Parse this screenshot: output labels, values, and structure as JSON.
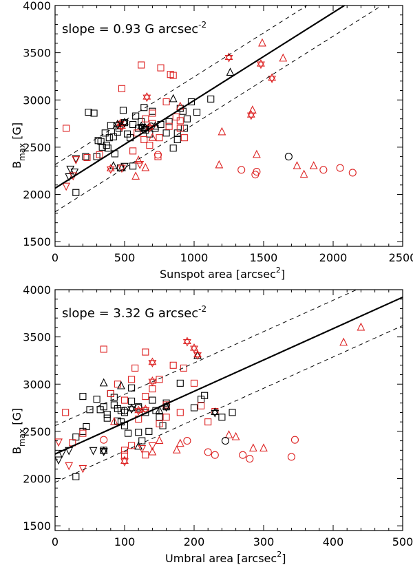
{
  "chart_data": [
    {
      "type": "scatter",
      "xlabel": "Sunspot area [arcsec",
      "xlabel_sup": "2",
      "xlabel_end": "]",
      "ylabel": "B",
      "ylabel_sub": "max",
      "ylabel_end": " [G]",
      "annotation": "slope = 0.93 G arcsec",
      "annotation_sup": "-2",
      "xlim": [
        0,
        2500
      ],
      "ylim": [
        1450,
        4000
      ],
      "xticks": [
        "0",
        "500",
        "1000",
        "1500",
        "2000",
        "2500"
      ],
      "yticks": [
        "1500",
        "2000",
        "2500",
        "3000",
        "3500",
        "4000"
      ],
      "fit": {
        "intercept": 2065,
        "slope": 0.93,
        "band": 250
      },
      "series": [
        {
          "marker": "square",
          "color": "#000000",
          "points": [
            [
              150,
              2020
            ],
            [
              220,
              2400
            ],
            [
              240,
              2870
            ],
            [
              280,
              2860
            ],
            [
              310,
              2570
            ],
            [
              330,
              2560
            ],
            [
              340,
              2500
            ],
            [
              360,
              2650
            ],
            [
              370,
              2520
            ],
            [
              380,
              2490
            ],
            [
              390,
              2600
            ],
            [
              400,
              2730
            ],
            [
              420,
              2610
            ],
            [
              450,
              2660
            ],
            [
              460,
              2700
            ],
            [
              470,
              2280
            ],
            [
              490,
              2890
            ],
            [
              500,
              2760
            ],
            [
              520,
              2640
            ],
            [
              540,
              2600
            ],
            [
              560,
              2740
            ],
            [
              580,
              2830
            ],
            [
              600,
              2700
            ],
            [
              620,
              2770
            ],
            [
              640,
              2920
            ],
            [
              650,
              2680
            ],
            [
              680,
              2640
            ],
            [
              700,
              2880
            ],
            [
              720,
              2700
            ],
            [
              760,
              2740
            ],
            [
              800,
              2650
            ],
            [
              820,
              2770
            ],
            [
              850,
              2490
            ],
            [
              880,
              2650
            ],
            [
              900,
              2910
            ],
            [
              920,
              2880
            ],
            [
              950,
              2800
            ],
            [
              980,
              2980
            ],
            [
              1020,
              2870
            ],
            [
              1120,
              3010
            ],
            [
              300,
              2400
            ],
            [
              430,
              2430
            ],
            [
              560,
              2300
            ],
            [
              880,
              2580
            ],
            [
              930,
              2700
            ]
          ]
        },
        {
          "marker": "square",
          "color": "#dd2222",
          "points": [
            [
              230,
              2390
            ],
            [
              320,
              2420
            ],
            [
              480,
              3120
            ],
            [
              620,
              3370
            ],
            [
              650,
              2800
            ],
            [
              700,
              2860
            ],
            [
              760,
              3340
            ],
            [
              800,
              2980
            ],
            [
              830,
              3270
            ],
            [
              850,
              3260
            ],
            [
              870,
              2820
            ],
            [
              900,
              2700
            ],
            [
              930,
              2600
            ],
            [
              560,
              2460
            ],
            [
              590,
              2650
            ],
            [
              640,
              2580
            ],
            [
              700,
              2750
            ],
            [
              680,
              2520
            ],
            [
              750,
              2600
            ],
            [
              900,
              2780
            ],
            [
              820,
              2720
            ],
            [
              740,
              2400
            ],
            [
              80,
              2700
            ]
          ]
        },
        {
          "marker": "triangle-up",
          "color": "#000000",
          "points": [
            [
              1260,
              3290
            ],
            [
              850,
              3010
            ],
            [
              480,
              2280
            ],
            [
              420,
              2300
            ],
            [
              720,
              2720
            ]
          ]
        },
        {
          "marker": "triangle-up",
          "color": "#dd2222",
          "points": [
            [
              1490,
              3600
            ],
            [
              1640,
              3440
            ],
            [
              1200,
              2660
            ],
            [
              1180,
              2310
            ],
            [
              1450,
              2420
            ],
            [
              1420,
              2890
            ],
            [
              1740,
              2300
            ],
            [
              1790,
              2210
            ],
            [
              1860,
              2300
            ],
            [
              580,
              2190
            ],
            [
              600,
              2360
            ],
            [
              650,
              2280
            ],
            [
              900,
              2930
            ],
            [
              700,
              2600
            ]
          ]
        },
        {
          "marker": "triangle-down",
          "color": "#000000",
          "points": [
            [
              100,
              2190
            ],
            [
              110,
              2270
            ],
            [
              150,
              2380
            ],
            [
              140,
              2240
            ],
            [
              500,
              2300
            ]
          ]
        },
        {
          "marker": "triangle-down",
          "color": "#dd2222",
          "points": [
            [
              80,
              2090
            ],
            [
              130,
              2200
            ],
            [
              150,
              2370
            ],
            [
              480,
              2280
            ],
            [
              610,
              2320
            ]
          ]
        },
        {
          "marker": "circle",
          "color": "#000000",
          "points": [
            [
              1680,
              2400
            ],
            [
              630,
              2700
            ],
            [
              690,
              2720
            ]
          ]
        },
        {
          "marker": "circle",
          "color": "#dd2222",
          "points": [
            [
              1340,
              2260
            ],
            [
              1440,
              2210
            ],
            [
              1450,
              2240
            ],
            [
              1930,
              2260
            ],
            [
              2050,
              2280
            ],
            [
              2140,
              2230
            ],
            [
              740,
              2420
            ]
          ]
        },
        {
          "marker": "star",
          "color": "#dd2222",
          "points": [
            [
              1250,
              3450
            ],
            [
              1480,
              3380
            ],
            [
              1560,
              3230
            ],
            [
              1410,
              2840
            ],
            [
              660,
              3030
            ],
            [
              400,
              2270
            ],
            [
              470,
              2750
            ],
            [
              480,
              2720
            ],
            [
              680,
              2710
            ]
          ]
        },
        {
          "marker": "star",
          "color": "#000000",
          "points": [
            [
              450,
              2740
            ],
            [
              500,
              2760
            ],
            [
              620,
              2720
            ],
            [
              650,
              2700
            ]
          ]
        }
      ]
    },
    {
      "type": "scatter",
      "xlabel": "Umbral area [arcsec",
      "xlabel_sup": "2",
      "xlabel_end": "]",
      "ylabel": "B",
      "ylabel_sub": "max",
      "ylabel_end": " [G]",
      "annotation": "slope = 3.32 G arcsec",
      "annotation_sup": "-2",
      "xlim": [
        0,
        500
      ],
      "ylim": [
        1450,
        4000
      ],
      "xticks": [
        "0",
        "100",
        "200",
        "300",
        "400",
        "500"
      ],
      "yticks": [
        "1500",
        "2000",
        "2500",
        "3000",
        "3500",
        "4000"
      ],
      "fit": {
        "intercept": 2260,
        "slope": 3.32,
        "band": 300
      },
      "series": [
        {
          "marker": "square",
          "color": "#000000",
          "points": [
            [
              30,
              2020
            ],
            [
              30,
              2440
            ],
            [
              40,
              2500
            ],
            [
              40,
              2870
            ],
            [
              45,
              2550
            ],
            [
              50,
              2730
            ],
            [
              60,
              2840
            ],
            [
              65,
              2730
            ],
            [
              70,
              2760
            ],
            [
              75,
              2680
            ],
            [
              75,
              2640
            ],
            [
              80,
              2900
            ],
            [
              85,
              2860
            ],
            [
              85,
              2780
            ],
            [
              90,
              2740
            ],
            [
              90,
              2610
            ],
            [
              95,
              2720
            ],
            [
              95,
              2600
            ],
            [
              100,
              2700
            ],
            [
              100,
              2560
            ],
            [
              105,
              2480
            ],
            [
              110,
              2960
            ],
            [
              110,
              2820
            ],
            [
              120,
              2760
            ],
            [
              120,
              2490
            ],
            [
              130,
              2700
            ],
            [
              140,
              2830
            ],
            [
              145,
              2720
            ],
            [
              150,
              2650
            ],
            [
              155,
              2560
            ],
            [
              160,
              2760
            ],
            [
              160,
              2800
            ],
            [
              180,
              3010
            ],
            [
              200,
              2750
            ],
            [
              210,
              2840
            ],
            [
              215,
              2880
            ],
            [
              240,
              2650
            ],
            [
              255,
              2700
            ],
            [
              70,
              2300
            ],
            [
              125,
              2400
            ],
            [
              135,
              2500
            ]
          ]
        },
        {
          "marker": "square",
          "color": "#dd2222",
          "points": [
            [
              15,
              2700
            ],
            [
              25,
              2380
            ],
            [
              40,
              2480
            ],
            [
              70,
              3370
            ],
            [
              80,
              2900
            ],
            [
              90,
              3000
            ],
            [
              100,
              2830
            ],
            [
              110,
              3050
            ],
            [
              115,
              3170
            ],
            [
              120,
              2630
            ],
            [
              130,
              3340
            ],
            [
              140,
              2950
            ],
            [
              150,
              3050
            ],
            [
              160,
              2780
            ],
            [
              170,
              3200
            ],
            [
              185,
              3170
            ],
            [
              200,
              3010
            ],
            [
              210,
              2770
            ],
            [
              220,
              2600
            ],
            [
              230,
              2710
            ],
            [
              100,
              2250
            ],
            [
              110,
              2350
            ],
            [
              130,
              2250
            ],
            [
              150,
              2580
            ],
            [
              160,
              2650
            ],
            [
              180,
              2700
            ],
            [
              130,
              2870
            ],
            [
              100,
              2300
            ]
          ]
        },
        {
          "marker": "triangle-up",
          "color": "#000000",
          "points": [
            [
              70,
              3010
            ],
            [
              120,
              2340
            ],
            [
              205,
              3300
            ],
            [
              150,
              2720
            ],
            [
              95,
              2980
            ]
          ]
        },
        {
          "marker": "triangle-up",
          "color": "#dd2222",
          "points": [
            [
              440,
              3600
            ],
            [
              415,
              3440
            ],
            [
              300,
              2320
            ],
            [
              285,
              2320
            ],
            [
              260,
              2440
            ],
            [
              250,
              2460
            ],
            [
              150,
              2400
            ],
            [
              180,
              2370
            ],
            [
              100,
              2190
            ],
            [
              140,
              2280
            ],
            [
              85,
              2600
            ],
            [
              175,
              2300
            ]
          ]
        },
        {
          "marker": "triangle-down",
          "color": "#000000",
          "points": [
            [
              5,
              2200
            ],
            [
              10,
              2270
            ],
            [
              20,
              2300
            ],
            [
              55,
              2300
            ],
            [
              70,
              2290
            ]
          ]
        },
        {
          "marker": "triangle-down",
          "color": "#dd2222",
          "points": [
            [
              5,
              2390
            ],
            [
              20,
              2140
            ],
            [
              40,
              2110
            ],
            [
              100,
              2180
            ],
            [
              125,
              2320
            ],
            [
              140,
              2350
            ]
          ]
        },
        {
          "marker": "circle",
          "color": "#000000",
          "points": [
            [
              245,
              2400
            ],
            [
              100,
              2720
            ],
            [
              120,
              2750
            ]
          ]
        },
        {
          "marker": "circle",
          "color": "#dd2222",
          "points": [
            [
              220,
              2280
            ],
            [
              230,
              2250
            ],
            [
              270,
              2250
            ],
            [
              280,
              2210
            ],
            [
              340,
              2230
            ],
            [
              345,
              2410
            ],
            [
              70,
              2410
            ],
            [
              190,
              2400
            ]
          ]
        },
        {
          "marker": "star",
          "color": "#dd2222",
          "points": [
            [
              190,
              3450
            ],
            [
              200,
              3380
            ],
            [
              205,
              3310
            ],
            [
              140,
              3030
            ],
            [
              140,
              3230
            ],
            [
              120,
              2720
            ],
            [
              130,
              2730
            ]
          ]
        },
        {
          "marker": "star",
          "color": "#000000",
          "points": [
            [
              230,
              2700
            ],
            [
              110,
              2740
            ],
            [
              160,
              2760
            ],
            [
              70,
              2290
            ]
          ]
        }
      ]
    }
  ]
}
